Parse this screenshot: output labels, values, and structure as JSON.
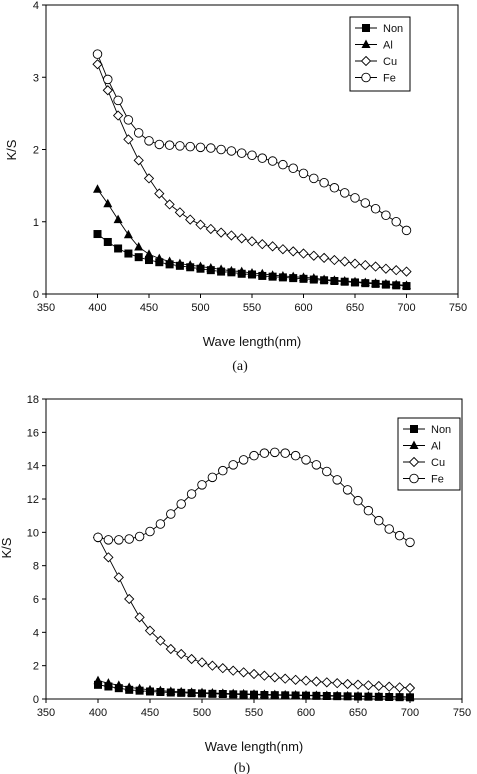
{
  "chart_data": [
    {
      "type": "line",
      "caption": "(a)",
      "xlabel": "Wave length(nm)",
      "ylabel": "K/S",
      "xlim": [
        350,
        750
      ],
      "ylim": [
        0,
        4
      ],
      "xticks": [
        350,
        400,
        450,
        500,
        550,
        600,
        650,
        700,
        750
      ],
      "yticks": [
        0,
        1,
        2,
        3,
        4
      ],
      "legend_position": "top-right",
      "x": [
        400,
        410,
        420,
        430,
        440,
        450,
        460,
        470,
        480,
        490,
        500,
        510,
        520,
        530,
        540,
        550,
        560,
        570,
        580,
        590,
        600,
        610,
        620,
        630,
        640,
        650,
        660,
        670,
        680,
        690,
        700
      ],
      "series": [
        {
          "name": "Non",
          "marker": "square-filled",
          "values": [
            0.83,
            0.72,
            0.63,
            0.56,
            0.51,
            0.47,
            0.44,
            0.41,
            0.39,
            0.37,
            0.35,
            0.33,
            0.31,
            0.3,
            0.28,
            0.27,
            0.25,
            0.24,
            0.23,
            0.22,
            0.21,
            0.2,
            0.19,
            0.18,
            0.17,
            0.16,
            0.15,
            0.14,
            0.13,
            0.12,
            0.11
          ]
        },
        {
          "name": "Al",
          "marker": "triangle-filled",
          "values": [
            1.45,
            1.25,
            1.03,
            0.82,
            0.65,
            0.55,
            0.49,
            0.45,
            0.42,
            0.4,
            0.38,
            0.36,
            0.34,
            0.32,
            0.31,
            0.29,
            0.28,
            0.26,
            0.25,
            0.24,
            0.23,
            0.22,
            0.2,
            0.19,
            0.18,
            0.17,
            0.16,
            0.15,
            0.14,
            0.13,
            0.12
          ]
        },
        {
          "name": "Cu",
          "marker": "diamond-open",
          "values": [
            3.18,
            2.82,
            2.47,
            2.14,
            1.85,
            1.6,
            1.39,
            1.24,
            1.13,
            1.03,
            0.96,
            0.9,
            0.85,
            0.81,
            0.77,
            0.73,
            0.69,
            0.66,
            0.62,
            0.59,
            0.56,
            0.53,
            0.5,
            0.47,
            0.45,
            0.42,
            0.4,
            0.38,
            0.35,
            0.33,
            0.31
          ]
        },
        {
          "name": "Fe",
          "marker": "circle-open",
          "values": [
            3.32,
            2.97,
            2.68,
            2.41,
            2.23,
            2.12,
            2.07,
            2.06,
            2.05,
            2.04,
            2.03,
            2.02,
            2.0,
            1.98,
            1.95,
            1.92,
            1.88,
            1.84,
            1.79,
            1.74,
            1.67,
            1.6,
            1.54,
            1.47,
            1.4,
            1.33,
            1.26,
            1.18,
            1.09,
            1.0,
            0.88
          ]
        }
      ]
    },
    {
      "type": "line",
      "caption": "(b)",
      "xlabel": "Wave length(nm)",
      "ylabel": "K/S",
      "xlim": [
        350,
        750
      ],
      "ylim": [
        0,
        18
      ],
      "xticks": [
        350,
        400,
        450,
        500,
        550,
        600,
        650,
        700,
        750
      ],
      "yticks": [
        0,
        2,
        4,
        6,
        8,
        10,
        12,
        14,
        16,
        18
      ],
      "legend_position": "top-right",
      "x": [
        400,
        410,
        420,
        430,
        440,
        450,
        460,
        470,
        480,
        490,
        500,
        510,
        520,
        530,
        540,
        550,
        560,
        570,
        580,
        590,
        600,
        610,
        620,
        630,
        640,
        650,
        660,
        670,
        680,
        690,
        700
      ],
      "series": [
        {
          "name": "Non",
          "marker": "square-filled",
          "values": [
            0.85,
            0.75,
            0.65,
            0.55,
            0.5,
            0.45,
            0.42,
            0.39,
            0.37,
            0.35,
            0.33,
            0.31,
            0.3,
            0.28,
            0.27,
            0.26,
            0.24,
            0.23,
            0.22,
            0.21,
            0.2,
            0.19,
            0.18,
            0.17,
            0.16,
            0.15,
            0.14,
            0.13,
            0.12,
            0.11,
            0.1
          ]
        },
        {
          "name": "Al",
          "marker": "triangle-filled",
          "values": [
            1.1,
            0.95,
            0.82,
            0.7,
            0.62,
            0.55,
            0.5,
            0.46,
            0.43,
            0.4,
            0.38,
            0.36,
            0.34,
            0.32,
            0.31,
            0.29,
            0.28,
            0.26,
            0.25,
            0.24,
            0.23,
            0.22,
            0.21,
            0.2,
            0.19,
            0.18,
            0.17,
            0.16,
            0.15,
            0.14,
            0.13
          ]
        },
        {
          "name": "Cu",
          "marker": "diamond-open",
          "values": [
            9.7,
            8.5,
            7.3,
            6.0,
            4.9,
            4.1,
            3.5,
            3.0,
            2.7,
            2.4,
            2.2,
            2.0,
            1.85,
            1.7,
            1.6,
            1.5,
            1.4,
            1.3,
            1.22,
            1.15,
            1.1,
            1.05,
            1.0,
            0.95,
            0.9,
            0.86,
            0.82,
            0.78,
            0.74,
            0.7,
            0.66
          ]
        },
        {
          "name": "Fe",
          "marker": "circle-open",
          "values": [
            9.7,
            9.55,
            9.55,
            9.6,
            9.75,
            10.05,
            10.5,
            11.1,
            11.7,
            12.3,
            12.85,
            13.3,
            13.7,
            14.05,
            14.35,
            14.6,
            14.75,
            14.8,
            14.75,
            14.6,
            14.35,
            14.05,
            13.65,
            13.15,
            12.55,
            11.9,
            11.3,
            10.7,
            10.2,
            9.8,
            9.4
          ]
        }
      ]
    }
  ]
}
